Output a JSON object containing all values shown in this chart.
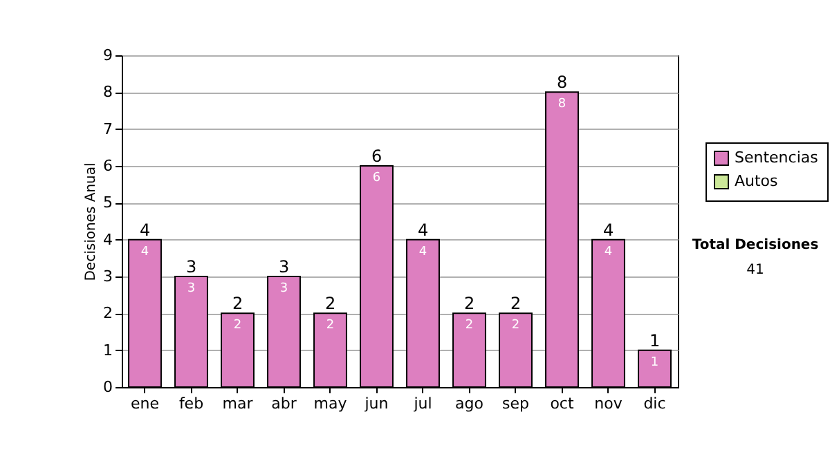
{
  "chart_data": {
    "type": "bar",
    "stacked": true,
    "ylabel": "Decisiones Anual",
    "categories": [
      "ene",
      "feb",
      "mar",
      "abr",
      "may",
      "jun",
      "jul",
      "ago",
      "sep",
      "oct",
      "nov",
      "dic"
    ],
    "series": [
      {
        "name": "Sentencias",
        "color": "#dd7fc0",
        "values": [
          4,
          3,
          2,
          3,
          2,
          6,
          4,
          2,
          2,
          8,
          4,
          1
        ],
        "value_labels": [
          "4",
          "3",
          "2",
          "3",
          "2",
          "6",
          "4",
          "2",
          "2",
          "8",
          "4",
          "1"
        ]
      },
      {
        "name": "Autos",
        "color": "#cce899",
        "values": [
          null,
          null,
          null,
          null,
          null,
          null,
          null,
          null,
          null,
          null,
          null,
          null
        ]
      }
    ],
    "totals": [
      "4",
      "3",
      "2",
      "3",
      "2",
      "6",
      "4",
      "2",
      "2",
      "8",
      "4",
      "1"
    ],
    "ylim": [
      0,
      9
    ],
    "yticks": [
      0,
      1,
      2,
      3,
      4,
      5,
      6,
      7,
      8,
      9
    ],
    "grid": "y",
    "legend": "right",
    "annotations": [
      "Total Decisiones",
      "41"
    ]
  }
}
